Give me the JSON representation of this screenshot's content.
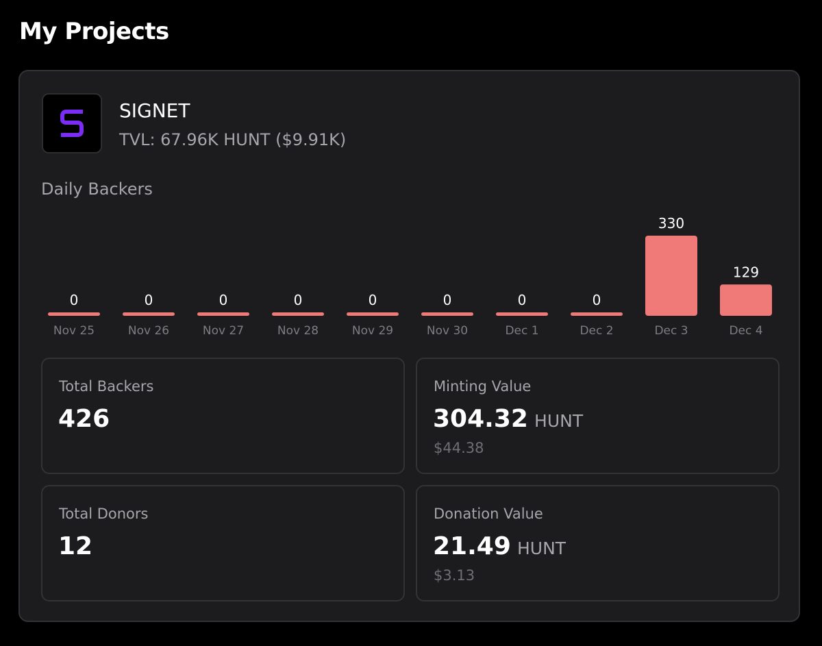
{
  "page": {
    "title": "My Projects"
  },
  "project": {
    "name": "SIGNET",
    "tvl": "TVL: 67.96K HUNT ($9.91K)",
    "logo_icon": "signet-s-logo-icon",
    "logo_color": "#7b2cf5"
  },
  "daily_backers": {
    "label": "Daily Backers",
    "bar_color": "#ef7a78"
  },
  "chart_data": {
    "type": "bar",
    "title": "Daily Backers",
    "categories": [
      "Nov 25",
      "Nov 26",
      "Nov 27",
      "Nov 28",
      "Nov 29",
      "Nov 30",
      "Dec 1",
      "Dec 2",
      "Dec 3",
      "Dec 4"
    ],
    "values": [
      0,
      0,
      0,
      0,
      0,
      0,
      0,
      0,
      330,
      129
    ],
    "xlabel": "",
    "ylabel": "",
    "grid": false,
    "data_labels": true
  },
  "stats": {
    "total_backers": {
      "label": "Total Backers",
      "value": "426"
    },
    "minting_value": {
      "label": "Minting Value",
      "value": "304.32",
      "unit": "HUNT",
      "usd": "$44.38"
    },
    "total_donors": {
      "label": "Total Donors",
      "value": "12"
    },
    "donation_value": {
      "label": "Donation Value",
      "value": "21.49",
      "unit": "HUNT",
      "usd": "$3.13"
    }
  }
}
